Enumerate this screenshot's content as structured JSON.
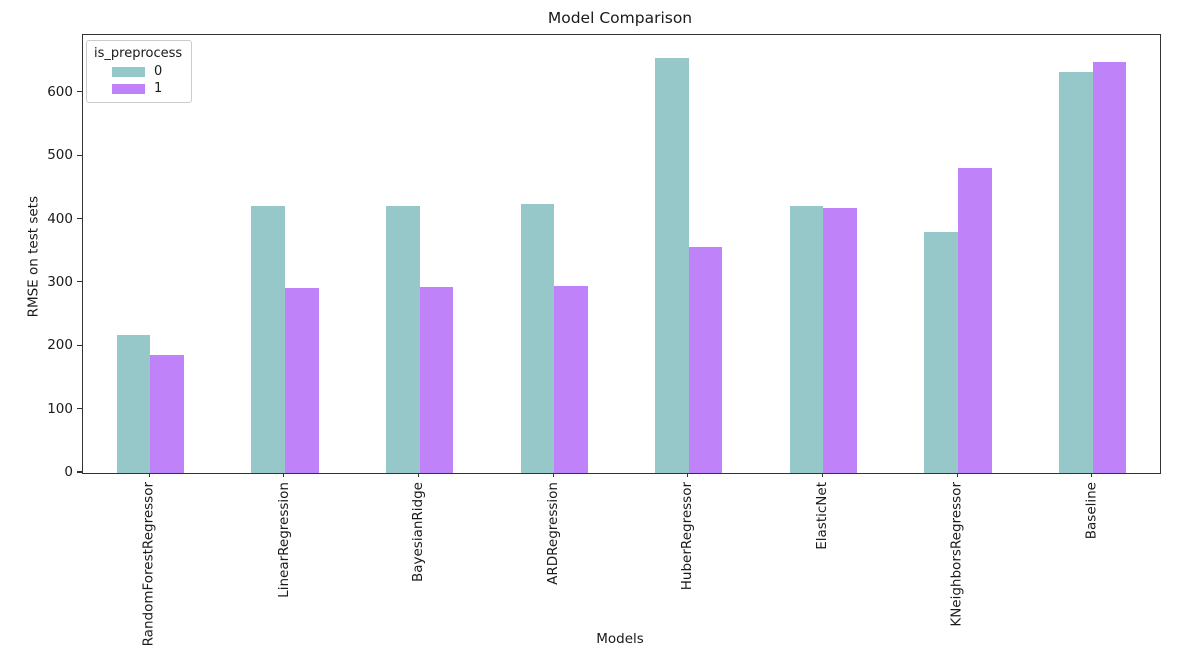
{
  "chart_data": {
    "type": "bar",
    "title": "Model Comparison",
    "xlabel": "Models",
    "ylabel": "RMSE on test sets",
    "ylim": [
      0,
      691
    ],
    "yticks": [
      0,
      100,
      200,
      300,
      400,
      500,
      600
    ],
    "grid": false,
    "xtick_rotation": 90,
    "legend": {
      "title": "is_preprocess",
      "position": "upper left",
      "entries": [
        {
          "label": "0",
          "color": "#96c8ca"
        },
        {
          "label": "1",
          "color": "#bf82f8"
        }
      ]
    },
    "categories": [
      "RandomForestRegressor",
      "LinearRegression",
      "BayesianRidge",
      "ARDRegression",
      "HuberRegressor",
      "ElasticNet",
      "KNeighborsRegressor",
      "Baseline"
    ],
    "series": [
      {
        "name": "0",
        "color": "#96c8ca",
        "values": [
          218,
          422,
          422,
          424,
          655,
          422,
          381,
          633
        ]
      },
      {
        "name": "1",
        "color": "#bf82f8",
        "values": [
          186,
          292,
          293,
          295,
          356,
          418,
          482,
          648
        ]
      }
    ]
  }
}
